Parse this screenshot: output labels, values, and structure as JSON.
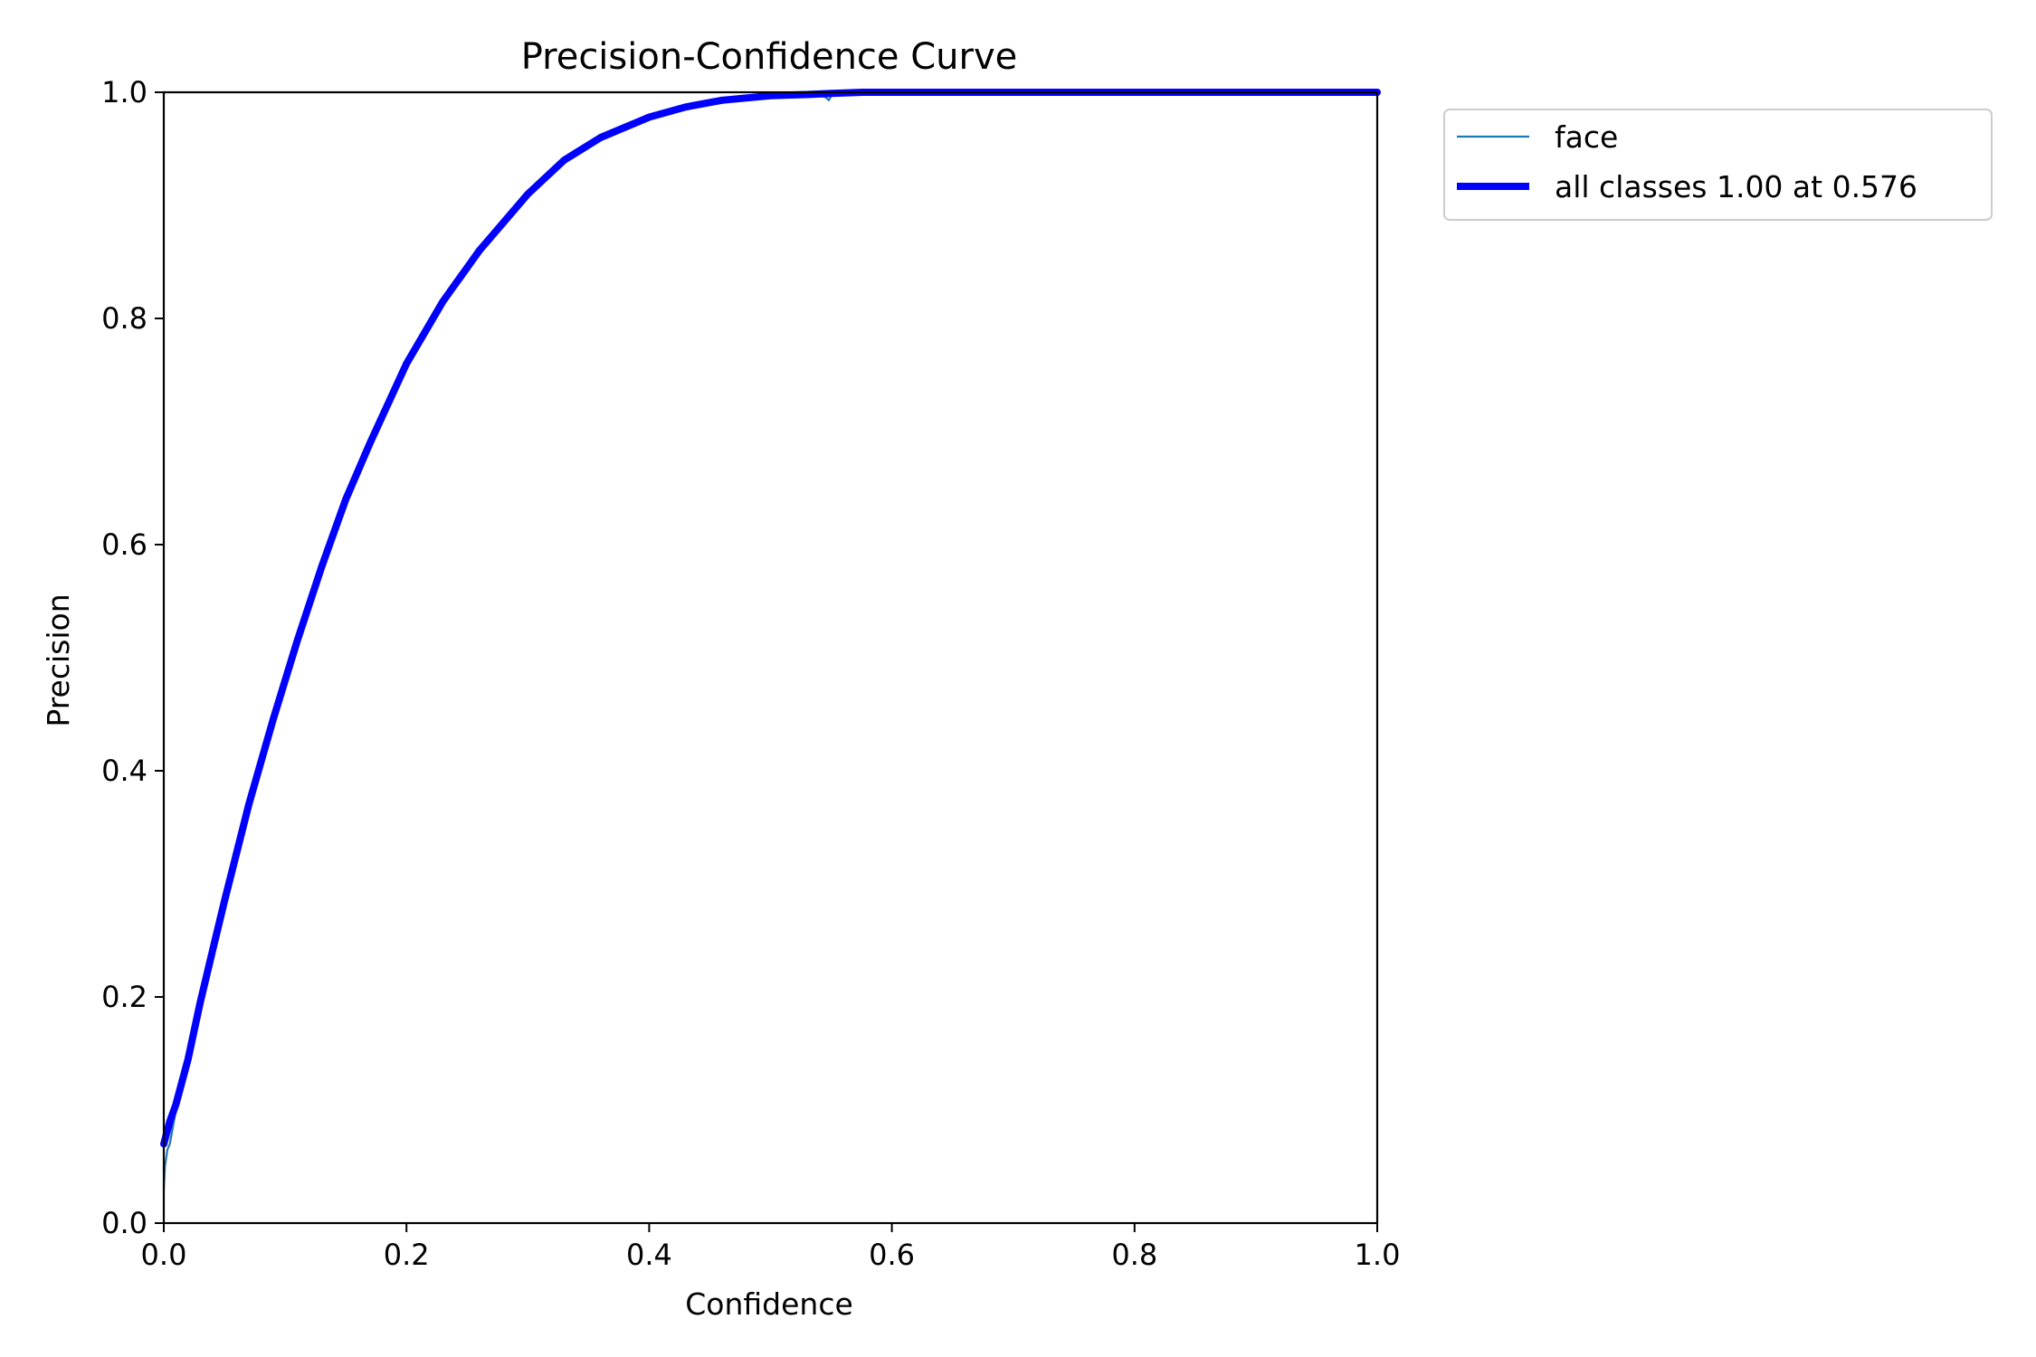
{
  "chart_data": {
    "type": "line",
    "title": "Precision-Confidence Curve",
    "xlabel": "Confidence",
    "ylabel": "Precision",
    "xlim": [
      0.0,
      1.0
    ],
    "ylim": [
      0.0,
      1.0
    ],
    "x_ticks": [
      "0.0",
      "0.2",
      "0.4",
      "0.6",
      "0.8",
      "1.0"
    ],
    "y_ticks": [
      "0.0",
      "0.2",
      "0.4",
      "0.6",
      "0.8",
      "1.0"
    ],
    "grid": false,
    "legend_position": "outside-upper-right",
    "series": [
      {
        "name": "face",
        "color": "#1f77b4",
        "line_style": "thin",
        "x": [
          0.0,
          0.001,
          0.003,
          0.005,
          0.01,
          0.02,
          0.03,
          0.04,
          0.05,
          0.07,
          0.09,
          0.11,
          0.13,
          0.15,
          0.17,
          0.2,
          0.23,
          0.26,
          0.3,
          0.33,
          0.36,
          0.4,
          0.43,
          0.46,
          0.5,
          0.53,
          0.545,
          0.548,
          0.55,
          0.56,
          0.576,
          0.6,
          0.7,
          0.8,
          0.9,
          1.0
        ],
        "y": [
          0.03,
          0.05,
          0.065,
          0.07,
          0.1,
          0.14,
          0.19,
          0.24,
          0.285,
          0.37,
          0.445,
          0.515,
          0.58,
          0.64,
          0.69,
          0.76,
          0.815,
          0.86,
          0.91,
          0.94,
          0.96,
          0.978,
          0.987,
          0.993,
          0.997,
          0.998,
          0.996,
          0.993,
          0.997,
          0.999,
          1.0,
          1.0,
          1.0,
          1.0,
          1.0,
          1.0
        ]
      },
      {
        "name": "all classes 1.00 at 0.576",
        "color": "#0000ff",
        "line_style": "thick",
        "x": [
          0.0,
          0.005,
          0.01,
          0.02,
          0.03,
          0.04,
          0.05,
          0.07,
          0.09,
          0.11,
          0.13,
          0.15,
          0.17,
          0.2,
          0.23,
          0.26,
          0.3,
          0.33,
          0.36,
          0.4,
          0.43,
          0.46,
          0.5,
          0.53,
          0.55,
          0.576,
          0.6,
          0.7,
          0.8,
          0.9,
          1.0
        ],
        "y": [
          0.07,
          0.09,
          0.105,
          0.145,
          0.195,
          0.24,
          0.285,
          0.37,
          0.445,
          0.515,
          0.58,
          0.64,
          0.69,
          0.76,
          0.815,
          0.86,
          0.91,
          0.94,
          0.96,
          0.978,
          0.987,
          0.993,
          0.997,
          0.998,
          0.999,
          1.0,
          1.0,
          1.0,
          1.0,
          1.0,
          1.0
        ]
      }
    ]
  }
}
